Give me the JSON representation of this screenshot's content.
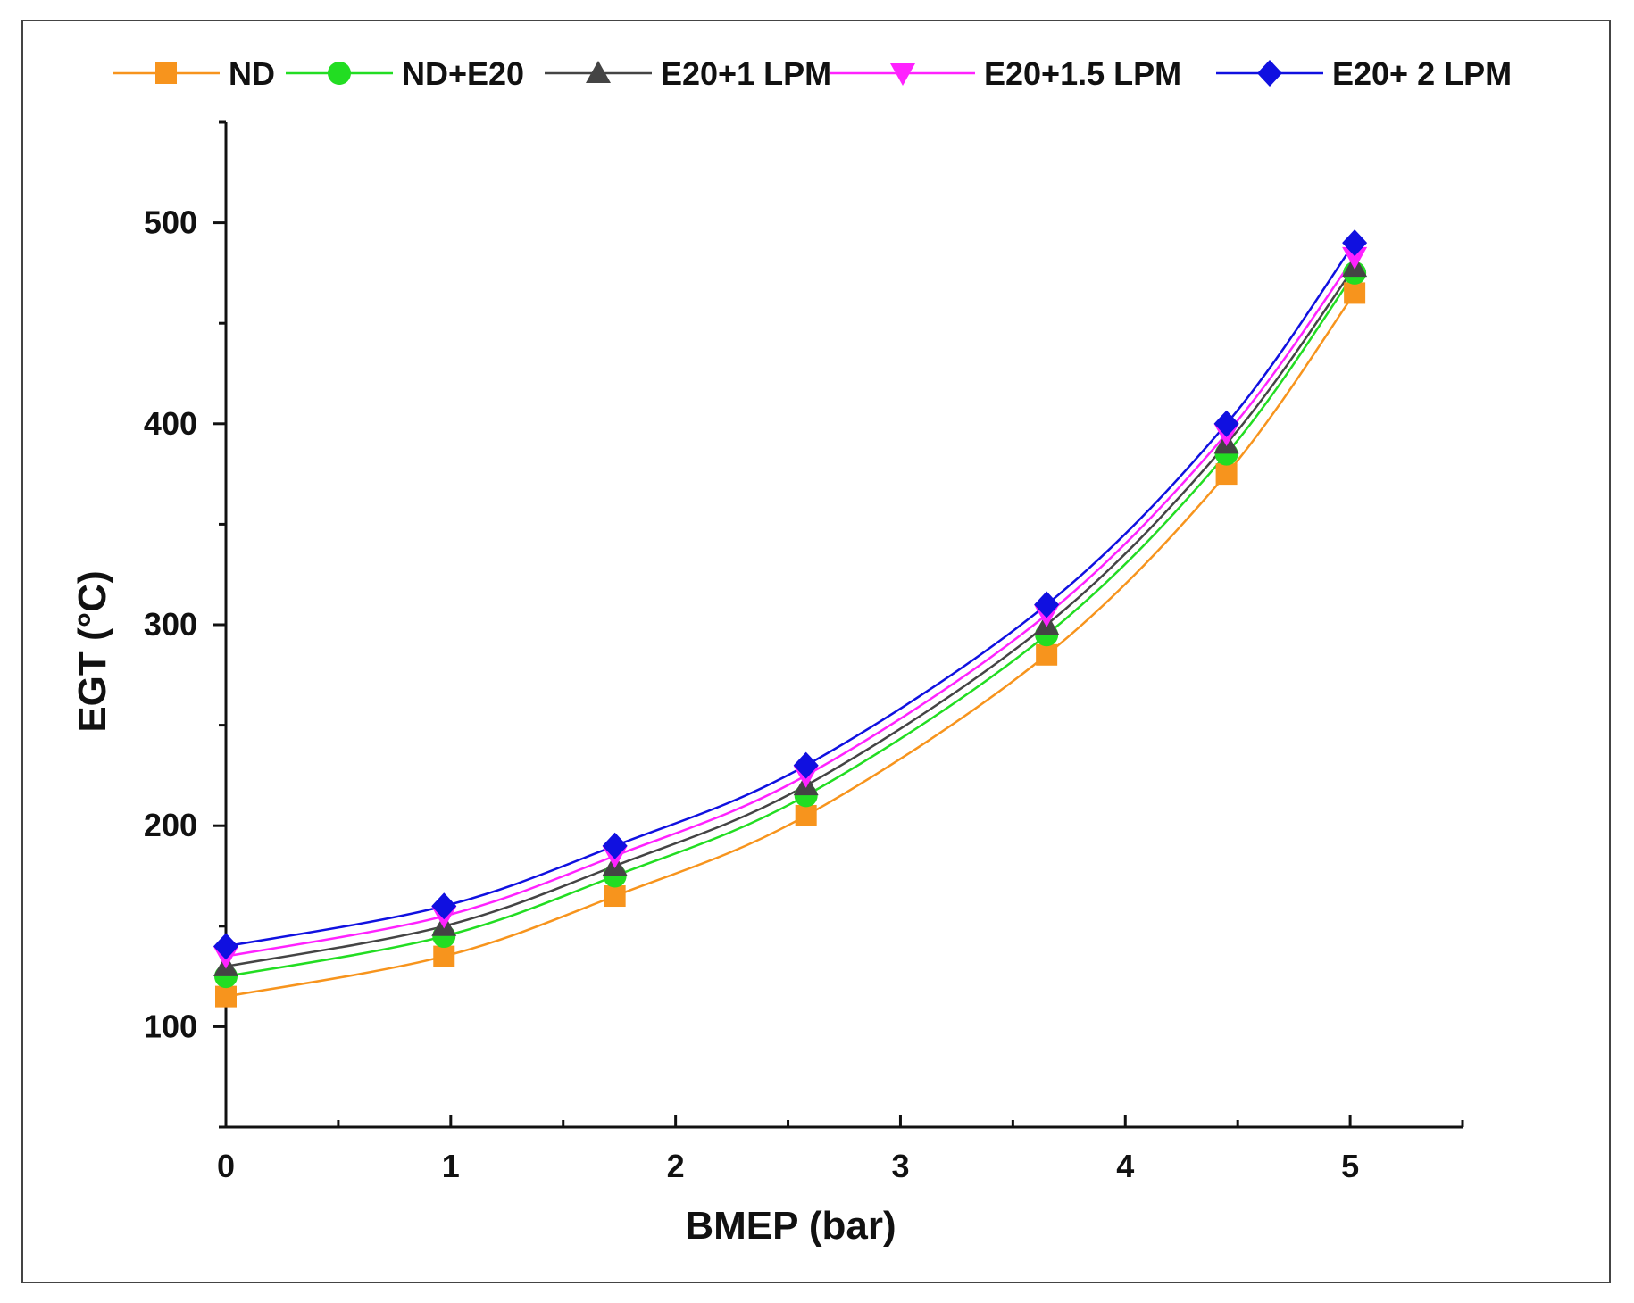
{
  "chart_data": {
    "type": "line",
    "title": "",
    "xlabel": "BMEP (bar)",
    "ylabel": "EGT (°C)",
    "xlim": [
      0,
      5.5
    ],
    "ylim": [
      50,
      550
    ],
    "xticks": [
      0,
      1,
      2,
      3,
      4,
      5
    ],
    "xtick_labels": [
      "0",
      "1",
      "2",
      "3",
      "4",
      "5"
    ],
    "yticks": [
      100,
      200,
      300,
      400,
      500
    ],
    "ytick_labels": [
      "100",
      "200",
      "300",
      "400",
      "500"
    ],
    "grid": false,
    "legend_position": "top",
    "x": [
      0,
      0.97,
      1.73,
      2.58,
      3.65,
      4.45,
      5.02
    ],
    "series": [
      {
        "name": "ND",
        "marker": "square",
        "color": "#f7941d",
        "values": [
          115,
          135,
          165,
          205,
          285,
          375,
          465
        ]
      },
      {
        "name": "ND+E20",
        "marker": "circle",
        "color": "#22dd22",
        "values": [
          125,
          145,
          175,
          215,
          295,
          385,
          475
        ]
      },
      {
        "name": "E20+1 LPM",
        "marker": "triangle-up",
        "color": "#444444",
        "values": [
          130,
          150,
          180,
          220,
          300,
          390,
          478
        ]
      },
      {
        "name": "E20+1.5 LPM",
        "marker": "triangle-down",
        "color": "#ff22ff",
        "values": [
          135,
          155,
          185,
          225,
          305,
          395,
          483
        ]
      },
      {
        "name": "E20+ 2 LPM",
        "marker": "diamond",
        "color": "#1010e0",
        "values": [
          140,
          160,
          190,
          230,
          310,
          400,
          490
        ]
      }
    ]
  }
}
